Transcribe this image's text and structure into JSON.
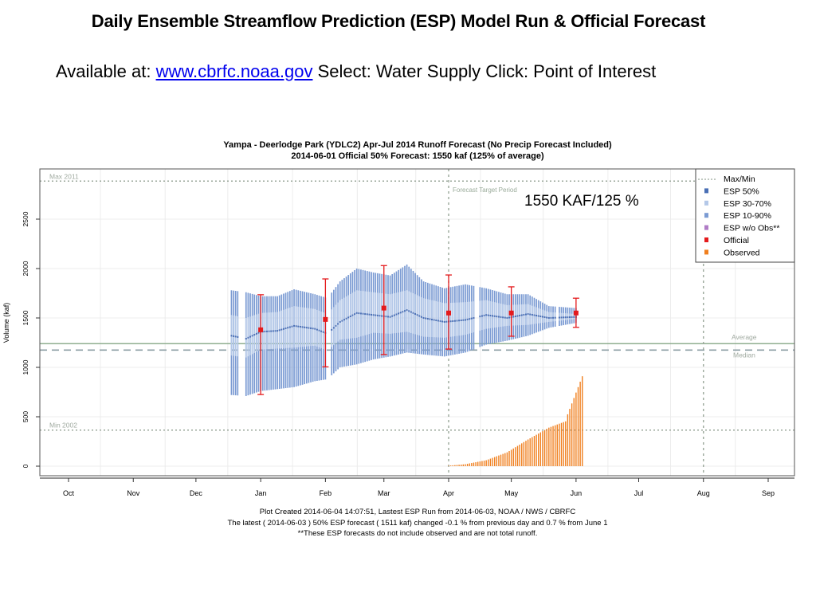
{
  "slide": {
    "title": "Daily Ensemble Streamflow Prediction (ESP) Model Run & Official Forecast",
    "subtitle_prefix": "Available at: ",
    "link_text": "www.cbrfc.noaa.gov",
    "subtitle_suffix": " Select: Water Supply  Click: Point of Interest"
  },
  "colors": {
    "esp50": "#4a6fb5",
    "esp3070": "#b4c8e8",
    "esp1090": "#7b9bd3",
    "esp_wo_obs": "#b07cc6",
    "official": "#e41a1c",
    "observed": "#f07f1e",
    "reference_line": "#9aab9a",
    "average_line": "#8fae8f"
  },
  "chart_data": {
    "type": "bar",
    "title": "Yampa - Deerlodge Park (YDLC2) Apr-Jul 2014 Runoff Forecast  (No Precip Forecast Included)",
    "subtitle": "2014-06-01 Official 50% Forecast: 1550 kaf (125% of average)",
    "annotation": "1550 KAF/125 %",
    "ylabel": "Volume (kaf)",
    "xlabel": "",
    "ylim": [
      -90,
      2990
    ],
    "yticks": [
      0,
      500,
      1000,
      1500,
      2000,
      2500
    ],
    "x_tick_labels": [
      "Oct",
      "Nov",
      "Dec",
      "Jan",
      "Feb",
      "Mar",
      "Apr",
      "May",
      "Jun",
      "Jul",
      "Aug",
      "Sep"
    ],
    "grid": true,
    "legend_position": "top-right",
    "legend": [
      "Max/Min",
      "ESP 50%",
      "ESP 30-70%",
      "ESP 10-90%",
      "ESP w/o Obs**",
      "Official",
      "Observed"
    ],
    "reference_lines": [
      {
        "name": "Max 2011",
        "value": 2885,
        "style": "dotted"
      },
      {
        "name": "Min 2002",
        "value": 365,
        "style": "dotted"
      },
      {
        "name": "Average",
        "value": 1240,
        "style": "solid"
      },
      {
        "name": "Median",
        "value": 1175,
        "style": "dashed"
      }
    ],
    "forecast_target_period": {
      "label": "Forecast Target Period",
      "start_month": "Apr",
      "end_month": "Aug"
    },
    "official": [
      {
        "date": "2014-01-01",
        "value": 1380,
        "p10": 725,
        "p90": 1735
      },
      {
        "date": "2014-02-01",
        "value": 1485,
        "p10": 1005,
        "p90": 1895
      },
      {
        "date": "2014-03-01",
        "value": 1600,
        "p10": 1130,
        "p90": 2030
      },
      {
        "date": "2014-04-01",
        "value": 1550,
        "p10": 1185,
        "p90": 1935
      },
      {
        "date": "2014-05-01",
        "value": 1550,
        "p10": 1315,
        "p90": 1815
      },
      {
        "date": "2014-06-01",
        "value": 1550,
        "p10": 1405,
        "p90": 1700
      }
    ],
    "esp_keyframes": [
      {
        "day": 78,
        "p10": 720,
        "p30": 1120,
        "p50": 1320,
        "p70": 1530,
        "p90": 1780
      },
      {
        "day": 85,
        "p10": 710,
        "p30": 1100,
        "p50": 1290,
        "p70": 1500,
        "p90": 1760
      },
      {
        "day": 92,
        "p10": 760,
        "p30": 1180,
        "p50": 1360,
        "p70": 1550,
        "p90": 1720
      },
      {
        "day": 100,
        "p10": 780,
        "p30": 1190,
        "p50": 1370,
        "p70": 1560,
        "p90": 1720
      },
      {
        "day": 108,
        "p10": 800,
        "p30": 1200,
        "p50": 1420,
        "p70": 1620,
        "p90": 1790
      },
      {
        "day": 118,
        "p10": 860,
        "p30": 1220,
        "p50": 1390,
        "p70": 1590,
        "p90": 1740
      },
      {
        "day": 124,
        "p10": 880,
        "p30": 1170,
        "p50": 1340,
        "p70": 1540,
        "p90": 1700
      },
      {
        "day": 130,
        "p10": 1000,
        "p30": 1280,
        "p50": 1460,
        "p70": 1680,
        "p90": 1870
      },
      {
        "day": 138,
        "p10": 1030,
        "p30": 1300,
        "p50": 1550,
        "p70": 1780,
        "p90": 2000
      },
      {
        "day": 146,
        "p10": 1080,
        "p30": 1350,
        "p50": 1530,
        "p70": 1760,
        "p90": 1960
      },
      {
        "day": 154,
        "p10": 1110,
        "p30": 1340,
        "p50": 1510,
        "p70": 1740,
        "p90": 1930
      },
      {
        "day": 162,
        "p10": 1150,
        "p30": 1360,
        "p50": 1580,
        "p70": 1780,
        "p90": 2040
      },
      {
        "day": 170,
        "p10": 1130,
        "p30": 1310,
        "p50": 1500,
        "p70": 1700,
        "p90": 1870
      },
      {
        "day": 180,
        "p10": 1110,
        "p30": 1300,
        "p50": 1460,
        "p70": 1650,
        "p90": 1800
      },
      {
        "day": 190,
        "p10": 1150,
        "p30": 1330,
        "p50": 1480,
        "p70": 1660,
        "p90": 1840
      },
      {
        "day": 200,
        "p10": 1230,
        "p30": 1390,
        "p50": 1530,
        "p70": 1680,
        "p90": 1800
      },
      {
        "day": 210,
        "p10": 1270,
        "p30": 1420,
        "p50": 1500,
        "p70": 1630,
        "p90": 1740
      },
      {
        "day": 220,
        "p10": 1320,
        "p30": 1430,
        "p50": 1540,
        "p70": 1640,
        "p90": 1740
      },
      {
        "day": 230,
        "p10": 1400,
        "p30": 1460,
        "p50": 1500,
        "p70": 1560,
        "p90": 1620
      },
      {
        "day": 243,
        "p10": 1450,
        "p30": 1490,
        "p50": 1510,
        "p70": 1540,
        "p90": 1600
      }
    ],
    "observed_keyframes": [
      {
        "day": 182,
        "value": 5
      },
      {
        "day": 190,
        "value": 20
      },
      {
        "day": 200,
        "value": 60
      },
      {
        "day": 210,
        "value": 140
      },
      {
        "day": 220,
        "value": 270
      },
      {
        "day": 230,
        "value": 390
      },
      {
        "day": 240,
        "value": 470
      },
      {
        "day": 247,
        "value": 560
      },
      {
        "day": 255,
        "value": 770
      },
      {
        "day": 246,
        "value": 530
      },
      {
        "day": 249,
        "value": 910
      }
    ],
    "observed_end_value": 910,
    "footer_lines": [
      "Plot Created 2014-06-04 14:07:51, Lastest ESP Run from 2014-06-03, NOAA / NWS / CBRFC",
      "The latest ( 2014-06-03 ) 50% ESP forecast ( 1511  kaf) changed  -0.1 % from previous day and  0.7 % from  June 1",
      "**These ESP forecasts do not include observed and are not total runoff."
    ]
  }
}
